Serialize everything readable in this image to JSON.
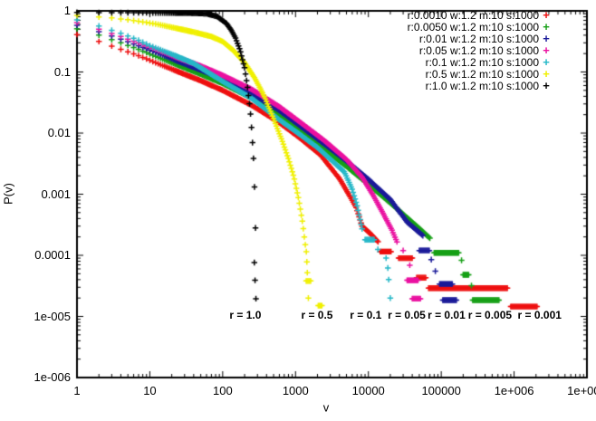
{
  "chart_data": {
    "type": "scatter",
    "title": "",
    "xlabel": "v",
    "ylabel": "P(v)",
    "xscale": "log",
    "yscale": "log",
    "xlim": [
      1,
      10000000
    ],
    "ylim": [
      1e-06,
      1
    ],
    "grid": false,
    "legend_position": "top-right",
    "marker_glyph": "+",
    "axis_color": "#000000",
    "x_tick_values": [
      1,
      10,
      100,
      1000,
      10000,
      100000,
      1000000,
      10000000
    ],
    "x_tick_labels": [
      "1",
      "10",
      "100",
      "1000",
      "10000",
      "100000",
      "1e+006",
      "1e+007"
    ],
    "y_tick_values": [
      1,
      0.1,
      0.01,
      0.001,
      0.0001,
      1e-05,
      1e-06
    ],
    "y_tick_labels": [
      "1",
      "0.1",
      "0.01",
      "0.001",
      "0.0001",
      "1e-005",
      "1e-006"
    ],
    "series": [
      {
        "label": "r:0.0010 w:1.2 m:10 s:1000",
        "color": "#ee0f0f",
        "anchors": [
          [
            1,
            0.41
          ],
          [
            2,
            0.315
          ],
          [
            4,
            0.235
          ],
          [
            7,
            0.185
          ],
          [
            12,
            0.142
          ],
          [
            25,
            0.1
          ],
          [
            50,
            0.072
          ],
          [
            100,
            0.05
          ],
          [
            250,
            0.0285
          ],
          [
            600,
            0.0148
          ],
          [
            1120,
            0.0085
          ],
          [
            2200,
            0.0044
          ],
          [
            4000,
            0.0018
          ],
          [
            5500,
            0.00095
          ],
          [
            6800,
            0.0006
          ],
          [
            8200,
            0.0003
          ],
          [
            10500,
            0.00023
          ],
          [
            14000,
            0.00016
          ]
        ],
        "tail_points": [],
        "tail_runs": [
          [
            14500,
            21000,
            0.000115
          ],
          [
            26000,
            40000,
            9e-05
          ],
          [
            46000,
            63000,
            4.3e-05
          ],
          [
            67000,
            820000,
            2.9e-05
          ],
          [
            900000,
            2100000,
            1.45e-05
          ]
        ]
      },
      {
        "label": "r:0.0050 w:1.2 m:10 s:1000",
        "color": "#16a016",
        "anchors": [
          [
            1,
            0.51
          ],
          [
            2,
            0.4
          ],
          [
            4,
            0.3
          ],
          [
            7,
            0.235
          ],
          [
            12,
            0.18
          ],
          [
            25,
            0.128
          ],
          [
            50,
            0.092
          ],
          [
            100,
            0.065
          ],
          [
            250,
            0.0375
          ],
          [
            600,
            0.0195
          ],
          [
            1120,
            0.0112
          ],
          [
            2500,
            0.0054
          ],
          [
            5000,
            0.00285
          ],
          [
            10000,
            0.00145
          ],
          [
            20000,
            0.00072
          ],
          [
            46000,
            0.0003
          ],
          [
            70000,
            0.00019
          ]
        ],
        "tail_points": [
          [
            190000,
            8.3e-05
          ],
          [
            260000,
            3.2e-05
          ]
        ],
        "tail_runs": [
          [
            80000,
            175000,
            0.00011
          ],
          [
            200000,
            240000,
            4.8e-05
          ],
          [
            270000,
            630000,
            1.85e-05
          ]
        ]
      },
      {
        "label": "r:0.01 w:1.2 m:10 s:1000",
        "color": "#1a1a99",
        "anchors": [
          [
            1,
            0.58
          ],
          [
            2,
            0.455
          ],
          [
            4,
            0.345
          ],
          [
            7,
            0.27
          ],
          [
            12,
            0.21
          ],
          [
            25,
            0.148
          ],
          [
            50,
            0.108
          ],
          [
            100,
            0.077
          ],
          [
            250,
            0.0445
          ],
          [
            600,
            0.0235
          ],
          [
            1120,
            0.0135
          ],
          [
            2500,
            0.0066
          ],
          [
            5000,
            0.0035
          ],
          [
            10000,
            0.00175
          ],
          [
            20000,
            0.00082
          ],
          [
            34000,
            0.00035
          ],
          [
            56000,
            0.00021
          ]
        ],
        "tail_points": [
          [
            73000,
            8.5e-05
          ],
          [
            83000,
            5.5e-05
          ]
        ],
        "tail_runs": [
          [
            50000,
            70000,
            0.00012
          ],
          [
            95000,
            145000,
            3.4e-05
          ],
          [
            105000,
            165000,
            1.85e-05
          ]
        ]
      },
      {
        "label": "r:0.05 w:1.2 m:10 s:1000",
        "color": "#ea10a0",
        "anchors": [
          [
            1,
            0.64
          ],
          [
            2,
            0.5
          ],
          [
            4,
            0.38
          ],
          [
            7,
            0.3
          ],
          [
            12,
            0.235
          ],
          [
            25,
            0.168
          ],
          [
            50,
            0.125
          ],
          [
            100,
            0.088
          ],
          [
            250,
            0.052
          ],
          [
            600,
            0.027
          ],
          [
            1120,
            0.0155
          ],
          [
            2500,
            0.0075
          ],
          [
            5000,
            0.0037
          ],
          [
            8200,
            0.0019
          ],
          [
            12000,
            0.0009
          ],
          [
            16000,
            0.00048
          ],
          [
            21000,
            0.00026
          ],
          [
            25000,
            0.00016
          ]
        ],
        "tail_points": [
          [
            30000,
            0.00012
          ],
          [
            37000,
            6.9e-05
          ]
        ],
        "tail_runs": [
          [
            34000,
            49000,
            3.9e-05
          ],
          [
            40000,
            52000,
            1.95e-05
          ]
        ]
      },
      {
        "label": "r:0.1 w:1.2 m:10 s:1000",
        "color": "#25b8c8",
        "anchors": [
          [
            1,
            0.71
          ],
          [
            2,
            0.565
          ],
          [
            4,
            0.43
          ],
          [
            7,
            0.33
          ],
          [
            10,
            0.27
          ],
          [
            20,
            0.195
          ],
          [
            40,
            0.138
          ],
          [
            100,
            0.07
          ],
          [
            250,
            0.037
          ],
          [
            600,
            0.0165
          ],
          [
            1120,
            0.0097
          ],
          [
            2000,
            0.0058
          ],
          [
            3200,
            0.0035
          ],
          [
            4700,
            0.0023
          ],
          [
            6000,
            0.0012
          ],
          [
            7000,
            0.00065
          ],
          [
            8200,
            0.00027
          ]
        ],
        "tail_points": [
          [
            13500,
            0.000125
          ],
          [
            17500,
            9e-05
          ],
          [
            18500,
            6.2e-05
          ],
          [
            19000,
            4e-05
          ],
          [
            20000,
            2e-05
          ]
        ],
        "tail_runs": [
          [
            9000,
            12000,
            0.00018
          ]
        ],
        "tail_dense": true
      },
      {
        "label": "r:0.5 w:1.2 m:10 s:1000",
        "color": "#f0f000",
        "anchors": [
          [
            1,
            0.84
          ],
          [
            2,
            0.795
          ],
          [
            3,
            0.765
          ],
          [
            5,
            0.715
          ],
          [
            8,
            0.66
          ],
          [
            13,
            0.6
          ],
          [
            22,
            0.525
          ],
          [
            40,
            0.45
          ],
          [
            70,
            0.38
          ],
          [
            100,
            0.315
          ],
          [
            140,
            0.225
          ],
          [
            200,
            0.142
          ],
          [
            280,
            0.077
          ],
          [
            380,
            0.038
          ],
          [
            500,
            0.017
          ],
          [
            650,
            0.0077
          ],
          [
            800,
            0.0038
          ],
          [
            950,
            0.0019
          ],
          [
            1100,
            0.00085
          ],
          [
            1250,
            0.00034
          ],
          [
            1350,
            0.00016
          ],
          [
            1420,
            0.000105
          ]
        ],
        "tail_points": [
          [
            1430,
            7.8e-05
          ],
          [
            1450,
            5.2e-05
          ],
          [
            1500,
            2e-05
          ]
        ],
        "tail_runs": [
          [
            1400,
            1650,
            3.8e-05
          ],
          [
            2050,
            2300,
            1.5e-05
          ]
        ]
      },
      {
        "label": "r:1.0 w:1.2 m:10 s:1000",
        "color": "#000000",
        "anchors": [
          [
            1,
            0.94
          ],
          [
            3,
            0.935
          ],
          [
            8,
            0.93
          ],
          [
            20,
            0.925
          ],
          [
            40,
            0.92
          ],
          [
            60,
            0.9
          ],
          [
            84,
            0.81
          ],
          [
            113,
            0.62
          ],
          [
            130,
            0.49
          ],
          [
            150,
            0.36
          ],
          [
            173,
            0.23
          ],
          [
            200,
            0.116
          ],
          [
            218,
            0.059
          ],
          [
            238,
            0.025
          ],
          [
            251,
            0.0106
          ],
          [
            265,
            0.0038
          ],
          [
            272,
            0.0016
          ],
          [
            278,
            0.00062
          ],
          [
            283,
            0.00023
          ],
          [
            287,
            0.000105
          ]
        ],
        "tail_points": [
          [
            272,
            7.6e-05
          ],
          [
            278,
            3.9e-05
          ],
          [
            286,
            1.95e-05
          ]
        ],
        "tail_runs": []
      }
    ],
    "annotations": [
      {
        "text": "r = 1.0",
        "v": 205,
        "p": 1.05e-05
      },
      {
        "text": "r = 0.5",
        "v": 1970,
        "p": 1.05e-05
      },
      {
        "text": "r = 0.1",
        "v": 9200,
        "p": 1.05e-05
      },
      {
        "text": "r = 0.05",
        "v": 33500,
        "p": 1.05e-05
      },
      {
        "text": "r = 0.01",
        "v": 118000,
        "p": 1.05e-05
      },
      {
        "text": "r = 0.005",
        "v": 466000,
        "p": 1.05e-05
      },
      {
        "text": "r = 0.001",
        "v": 2240000,
        "p": 1.05e-05
      }
    ]
  }
}
